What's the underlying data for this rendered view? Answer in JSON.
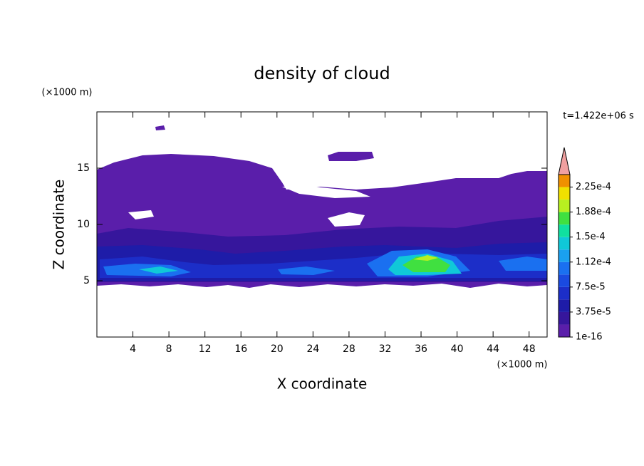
{
  "chart_data": {
    "type": "contour",
    "title": "density of cloud",
    "x_label": "X coordinate",
    "y_label": "Z coordinate",
    "x_unit": "(×1000 m)",
    "y_unit": "(×1000 m)",
    "annotation": "t=1.422e+06 s",
    "xlim": [
      0,
      50
    ],
    "xticks": [
      4,
      8,
      12,
      16,
      20,
      24,
      28,
      32,
      36,
      40,
      44,
      48
    ],
    "ylim": [
      0,
      20
    ],
    "yticks": [
      5,
      10,
      15
    ],
    "colorbar": {
      "lim": [
        0,
        0.00024375
      ],
      "ticks": [
        {
          "value": 1e-16,
          "label": "1e-16"
        },
        {
          "value": 3.75e-05,
          "label": "3.75e-5"
        },
        {
          "value": 7.5e-05,
          "label": "7.5e-5"
        },
        {
          "value": 0.0001125,
          "label": "1.12e-4"
        },
        {
          "value": 0.00015,
          "label": "1.5e-4"
        },
        {
          "value": 0.0001875,
          "label": "1.88e-4"
        },
        {
          "value": 0.000225,
          "label": "2.25e-4"
        }
      ],
      "colors": [
        "#5a1eaa",
        "#36169c",
        "#1e1ca8",
        "#1c2ec8",
        "#1a4ae0",
        "#1a70f0",
        "#1aa0f0",
        "#10c8d8",
        "#10e0a0",
        "#40e040",
        "#b8f020",
        "#f0e000",
        "#f09000"
      ],
      "extend_color": "#f0a0a0"
    }
  }
}
